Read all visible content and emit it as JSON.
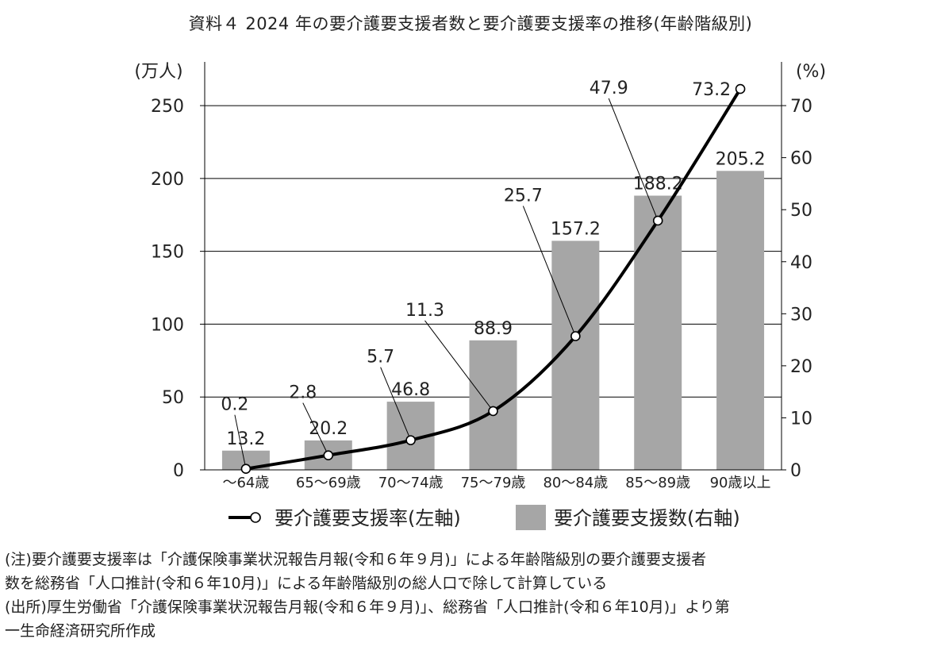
{
  "chart_data": {
    "type": "bar+line",
    "title": "資料４ 2024 年の要介護要支援者数と要介護要支援率の推移(年齢階級別)",
    "categories": [
      "～64歳",
      "65～69歳",
      "70～74歳",
      "75～79歳",
      "80～84歳",
      "85～89歳",
      "90歳以上"
    ],
    "bar_series": {
      "name": "要介護要支援数(右軸)",
      "values": [
        13.2,
        20.2,
        46.8,
        88.9,
        157.2,
        188.2,
        205.2
      ],
      "value_labels": [
        "13.2",
        "20.2",
        "46.8",
        "88.9",
        "157.2",
        "188.2",
        "205.2"
      ],
      "color": "#a6a6a6"
    },
    "line_series": {
      "name": "要介護要支援率(左軸)",
      "values": [
        0.2,
        2.8,
        5.7,
        11.3,
        25.7,
        47.9,
        73.2
      ],
      "value_labels": [
        "0.2",
        "2.8",
        "5.7",
        "11.3",
        "25.7",
        "47.9",
        "73.2"
      ],
      "color": "#000000"
    },
    "left_axis": {
      "unit_label": "(万人)",
      "range": [
        0,
        280
      ],
      "ticks": [
        0,
        50,
        100,
        150,
        200,
        250
      ],
      "tick_labels": [
        "0",
        "50",
        "100",
        "150",
        "200",
        "250"
      ]
    },
    "right_axis": {
      "unit_label": "(%)",
      "range": [
        0,
        78.4
      ],
      "ticks": [
        0,
        10,
        20,
        30,
        40,
        50,
        60,
        70
      ],
      "tick_labels": [
        "0",
        "10",
        "20",
        "30",
        "40",
        "50",
        "60",
        "70"
      ]
    },
    "grid": "horizontal",
    "legend_position": "bottom-center"
  },
  "notes": [
    "(注)要介護要支援率は「介護保険事業状況報告月報(令和６年９月)」による年齢階級別の要介護要支援者",
    "数を総務省「人口推計(令和６年10月)」による年齢階級別の総人口で除して計算している",
    "(出所)厚生労働省「介護保険事業状況報告月報(令和６年９月)」、総務省「人口推計(令和６年10月)」より第",
    "一生命経済研究所作成"
  ]
}
